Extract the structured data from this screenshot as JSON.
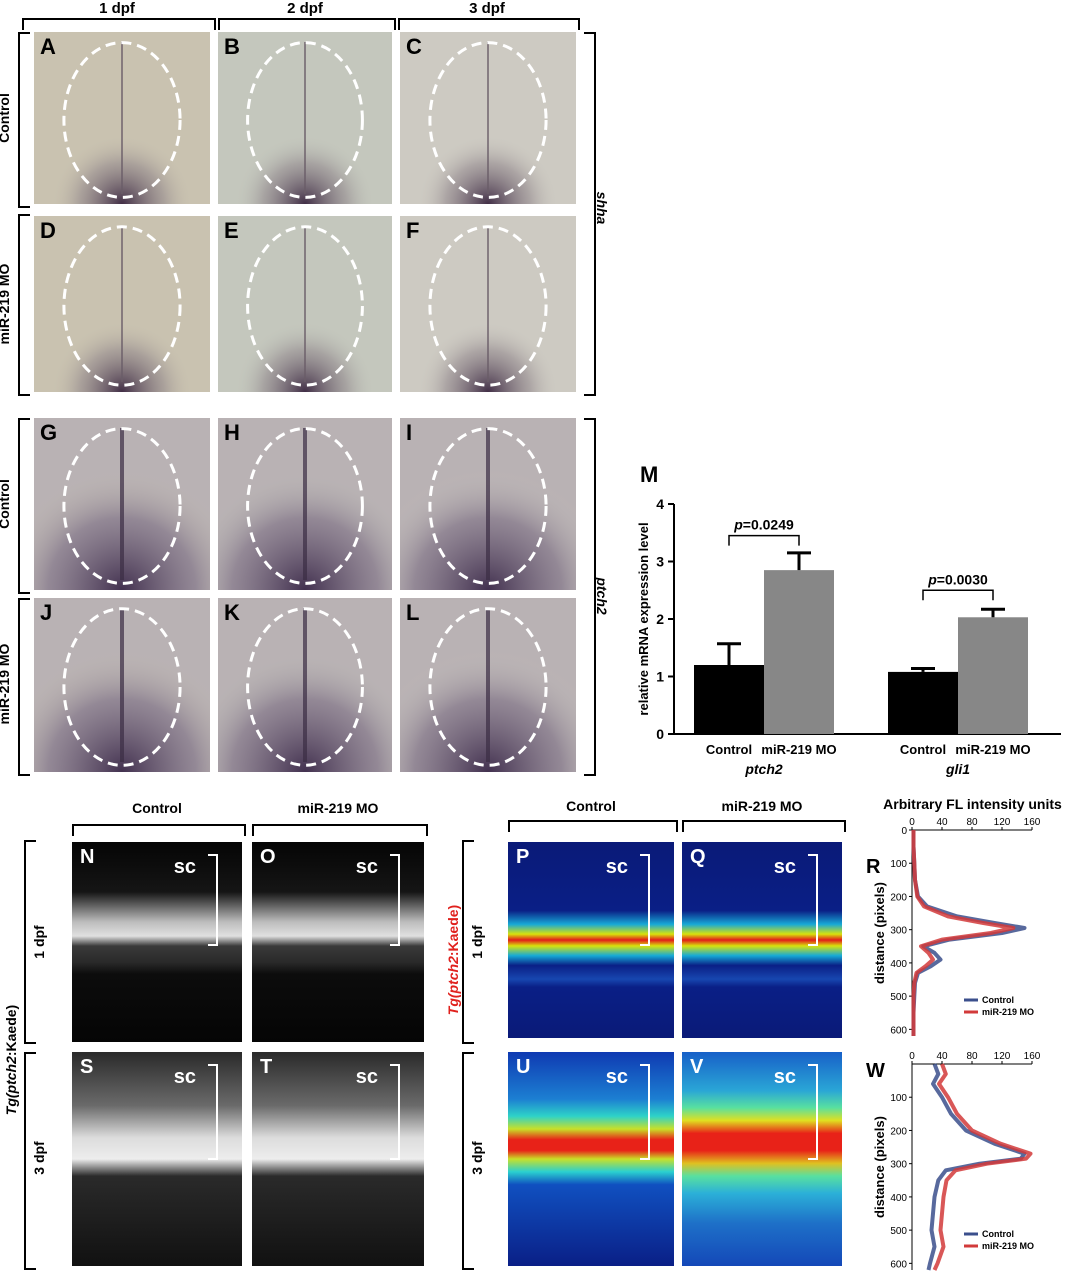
{
  "ish": {
    "column_headers": [
      "1 dpf",
      "2 dpf",
      "3 dpf"
    ],
    "row_labels": [
      "Control",
      "miR-219 MO",
      "Control",
      "miR-219 MO"
    ],
    "gene_labels": [
      "shha",
      "ptch2"
    ],
    "panel_letters": [
      "A",
      "B",
      "C",
      "D",
      "E",
      "F",
      "G",
      "H",
      "I",
      "J",
      "K",
      "L"
    ]
  },
  "chart_M": {
    "letter": "M",
    "ylabel": "relative mRNA expression level",
    "yticks": [
      "0",
      "1",
      "2",
      "3",
      "4"
    ],
    "group_labels": [
      "ptch2",
      "gli1"
    ],
    "bar_labels": [
      "Control",
      "miR-219 MO",
      "Control",
      "miR-219 MO"
    ],
    "pvalues": [
      "=0.0249",
      "=0.0030"
    ],
    "p_symbol": "p"
  },
  "chart_data": [
    {
      "type": "bar",
      "categories": [
        "ptch2",
        "gli1"
      ],
      "series": [
        {
          "name": "Control",
          "values": [
            1.2,
            1.08
          ],
          "errors": [
            0.37,
            0.06
          ],
          "color": "#000000"
        },
        {
          "name": "miR-219 MO",
          "values": [
            2.85,
            2.03
          ],
          "errors": [
            0.3,
            0.14
          ],
          "color": "#878787"
        }
      ],
      "ylabel": "relative mRNA expression level",
      "ylim": [
        0,
        4
      ],
      "annotations": [
        "p=0.0249",
        "p=0.0030"
      ]
    },
    {
      "type": "line",
      "title": "Arbitrary FL intensity units",
      "ylabel": "distance (pixels)",
      "xlim": [
        0,
        160
      ],
      "ylim": [
        0,
        620
      ],
      "xticks": [
        0,
        40,
        80,
        120,
        160
      ],
      "yticks": [
        0,
        100,
        200,
        300,
        400,
        500,
        600
      ],
      "legend": "bottom-right",
      "series": [
        {
          "name": "Control",
          "color": "#3b4f8c",
          "y": [
            0,
            50,
            100,
            150,
            200,
            230,
            260,
            280,
            295,
            310,
            330,
            350,
            370,
            390,
            410,
            430,
            460,
            500,
            550,
            600,
            620
          ],
          "x": [
            2,
            2,
            3,
            4,
            8,
            20,
            60,
            110,
            150,
            120,
            50,
            15,
            30,
            38,
            25,
            8,
            4,
            3,
            2,
            2,
            2
          ]
        },
        {
          "name": "miR-219 MO",
          "color": "#d23a3a",
          "y": [
            0,
            50,
            100,
            150,
            200,
            230,
            260,
            280,
            295,
            310,
            330,
            350,
            370,
            390,
            410,
            430,
            460,
            500,
            550,
            600,
            620
          ],
          "x": [
            2,
            2,
            3,
            4,
            7,
            16,
            48,
            95,
            135,
            105,
            40,
            12,
            22,
            28,
            18,
            6,
            3,
            2,
            2,
            2,
            2
          ]
        }
      ]
    },
    {
      "type": "line",
      "ylabel": "distance (pixels)",
      "xlim": [
        0,
        160
      ],
      "ylim": [
        0,
        620
      ],
      "xticks": [
        0,
        40,
        80,
        120,
        160
      ],
      "yticks": [
        100,
        200,
        300,
        400,
        500,
        600
      ],
      "legend": "bottom-right",
      "series": [
        {
          "name": "Control",
          "color": "#3b4f8c",
          "y": [
            0,
            30,
            60,
            100,
            150,
            200,
            240,
            270,
            285,
            300,
            320,
            350,
            400,
            450,
            500,
            550,
            600,
            620
          ],
          "x": [
            30,
            35,
            28,
            40,
            52,
            72,
            110,
            150,
            145,
            90,
            45,
            35,
            30,
            28,
            26,
            30,
            24,
            22
          ]
        },
        {
          "name": "miR-219 MO",
          "color": "#d23a3a",
          "y": [
            0,
            30,
            60,
            100,
            150,
            200,
            240,
            270,
            285,
            300,
            320,
            350,
            400,
            450,
            500,
            550,
            600,
            620
          ],
          "x": [
            40,
            45,
            36,
            48,
            60,
            80,
            118,
            158,
            152,
            100,
            58,
            46,
            42,
            40,
            38,
            42,
            34,
            30
          ]
        }
      ]
    }
  ],
  "transgenic": {
    "headers": [
      "Control",
      "miR-219 MO",
      "Control",
      "miR-219 MO"
    ],
    "stage_labels": [
      "1 dpf",
      "3 dpf",
      "1 dpf",
      "3 dpf"
    ],
    "tg_label_prefix": "Tg(",
    "tg_gene": "ptch2",
    "tg_label_suffix": ":Kaede)",
    "sc_label": "sc",
    "panel_letters": [
      "N",
      "O",
      "P",
      "Q",
      "S",
      "T",
      "U",
      "V"
    ],
    "chart_letters": [
      "R",
      "W"
    ],
    "legend_control": "Control",
    "legend_mo": "miR-219 MO",
    "heat_title": "Arbitrary FL intensity units"
  }
}
